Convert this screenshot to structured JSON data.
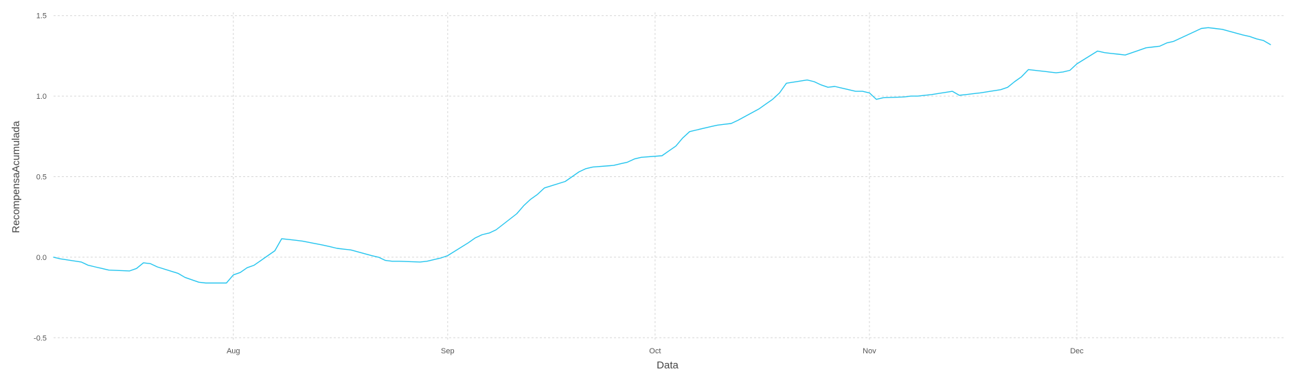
{
  "chart_data": {
    "type": "line",
    "title": "",
    "xlabel": "Data",
    "ylabel": "RecompensaAcumulada",
    "grid": true,
    "legend": "none",
    "x_range": [
      "2023-07-06",
      "2023-12-31"
    ],
    "ylim": [
      -0.52,
      1.52
    ],
    "yticks": [
      -0.5,
      0.0,
      0.5,
      1.0,
      1.5
    ],
    "ytick_labels": [
      "-0.5",
      "0.0",
      "0.5",
      "1.0",
      "1.5"
    ],
    "xticks": [
      "2023-08-01",
      "2023-09-01",
      "2023-10-01",
      "2023-11-01",
      "2023-12-01"
    ],
    "xtick_labels": [
      "Aug",
      "Sep",
      "Oct",
      "Nov",
      "Dec"
    ],
    "series": [
      {
        "color": "#22c4ee",
        "x": [
          "2023-07-06",
          "2023-07-07",
          "2023-07-10",
          "2023-07-11",
          "2023-07-12",
          "2023-07-13",
          "2023-07-14",
          "2023-07-17",
          "2023-07-18",
          "2023-07-19",
          "2023-07-20",
          "2023-07-21",
          "2023-07-24",
          "2023-07-25",
          "2023-07-26",
          "2023-07-27",
          "2023-07-28",
          "2023-07-31",
          "2023-08-01",
          "2023-08-02",
          "2023-08-03",
          "2023-08-04",
          "2023-08-07",
          "2023-08-08",
          "2023-08-09",
          "2023-08-10",
          "2023-08-11",
          "2023-08-14",
          "2023-08-15",
          "2023-08-16",
          "2023-08-17",
          "2023-08-18",
          "2023-08-21",
          "2023-08-22",
          "2023-08-23",
          "2023-08-24",
          "2023-08-25",
          "2023-08-28",
          "2023-08-29",
          "2023-08-30",
          "2023-08-31",
          "2023-09-01",
          "2023-09-04",
          "2023-09-05",
          "2023-09-06",
          "2023-09-07",
          "2023-09-08",
          "2023-09-11",
          "2023-09-12",
          "2023-09-13",
          "2023-09-14",
          "2023-09-15",
          "2023-09-18",
          "2023-09-19",
          "2023-09-20",
          "2023-09-21",
          "2023-09-22",
          "2023-09-25",
          "2023-09-26",
          "2023-09-27",
          "2023-09-28",
          "2023-09-29",
          "2023-10-02",
          "2023-10-03",
          "2023-10-04",
          "2023-10-05",
          "2023-10-06",
          "2023-10-09",
          "2023-10-10",
          "2023-10-11",
          "2023-10-12",
          "2023-10-13",
          "2023-10-16",
          "2023-10-17",
          "2023-10-18",
          "2023-10-19",
          "2023-10-20",
          "2023-10-23",
          "2023-10-24",
          "2023-10-25",
          "2023-10-26",
          "2023-10-27",
          "2023-10-30",
          "2023-10-31",
          "2023-11-01",
          "2023-11-02",
          "2023-11-03",
          "2023-11-06",
          "2023-11-07",
          "2023-11-08",
          "2023-11-09",
          "2023-11-10",
          "2023-11-13",
          "2023-11-14",
          "2023-11-15",
          "2023-11-16",
          "2023-11-17",
          "2023-11-20",
          "2023-11-21",
          "2023-11-22",
          "2023-11-23",
          "2023-11-24",
          "2023-11-27",
          "2023-11-28",
          "2023-11-29",
          "2023-11-30",
          "2023-12-01",
          "2023-12-04",
          "2023-12-05",
          "2023-12-06",
          "2023-12-07",
          "2023-12-08",
          "2023-12-11",
          "2023-12-12",
          "2023-12-13",
          "2023-12-14",
          "2023-12-15",
          "2023-12-18",
          "2023-12-19",
          "2023-12-20",
          "2023-12-21",
          "2023-12-22",
          "2023-12-25",
          "2023-12-26",
          "2023-12-27",
          "2023-12-28",
          "2023-12-29"
        ],
        "y": [
          0.0,
          -0.01,
          -0.03,
          -0.05,
          -0.06,
          -0.07,
          -0.08,
          -0.085,
          -0.07,
          -0.035,
          -0.04,
          -0.06,
          -0.1,
          -0.125,
          -0.14,
          -0.155,
          -0.16,
          -0.16,
          -0.11,
          -0.095,
          -0.065,
          -0.05,
          0.04,
          0.115,
          0.11,
          0.105,
          0.1,
          0.075,
          0.065,
          0.055,
          0.05,
          0.045,
          0.01,
          0.0,
          -0.02,
          -0.025,
          -0.025,
          -0.03,
          -0.025,
          -0.015,
          -0.005,
          0.01,
          0.09,
          0.12,
          0.14,
          0.15,
          0.17,
          0.27,
          0.32,
          0.36,
          0.39,
          0.43,
          0.47,
          0.5,
          0.53,
          0.55,
          0.56,
          0.57,
          0.58,
          0.59,
          0.61,
          0.62,
          0.63,
          0.66,
          0.69,
          0.74,
          0.78,
          0.81,
          0.82,
          0.825,
          0.83,
          0.85,
          0.92,
          0.95,
          0.98,
          1.02,
          1.08,
          1.1,
          1.09,
          1.07,
          1.055,
          1.06,
          1.03,
          1.03,
          1.02,
          0.98,
          0.99,
          0.995,
          1.0,
          1.0,
          1.005,
          1.01,
          1.03,
          1.005,
          1.01,
          1.015,
          1.02,
          1.04,
          1.055,
          1.09,
          1.12,
          1.165,
          1.15,
          1.145,
          1.15,
          1.16,
          1.2,
          1.28,
          1.27,
          1.265,
          1.26,
          1.255,
          1.3,
          1.305,
          1.31,
          1.33,
          1.34,
          1.4,
          1.42,
          1.425,
          1.42,
          1.415,
          1.38,
          1.37,
          1.355,
          1.345,
          1.32
        ]
      }
    ]
  }
}
